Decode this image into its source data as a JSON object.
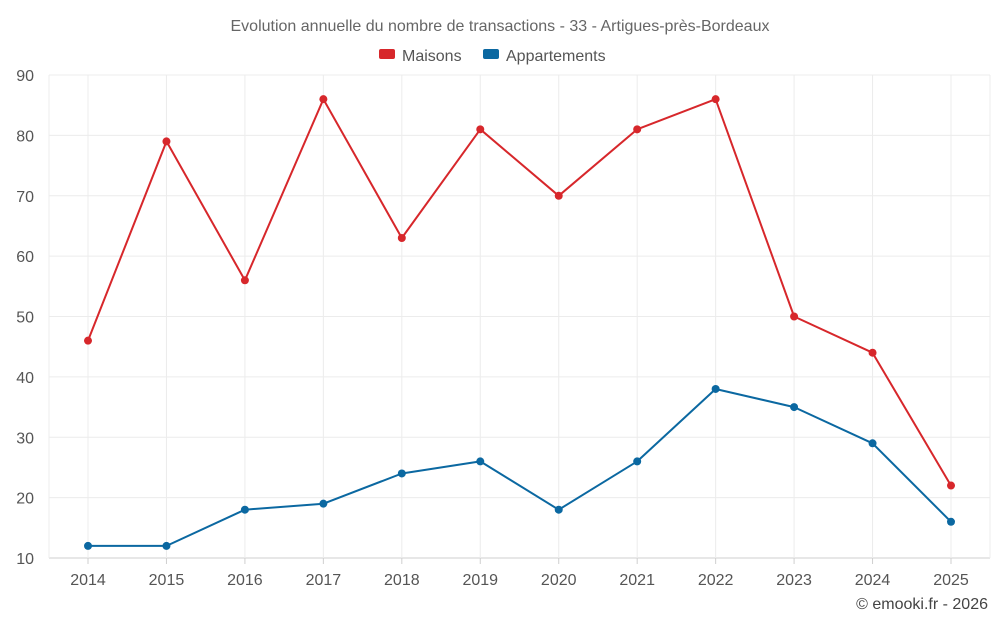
{
  "chart_data": {
    "type": "line",
    "title": "Evolution annuelle du nombre de transactions - 33 - Artigues-près-Bordeaux",
    "categories": [
      "2014",
      "2015",
      "2016",
      "2017",
      "2018",
      "2019",
      "2020",
      "2021",
      "2022",
      "2023",
      "2024",
      "2025"
    ],
    "series": [
      {
        "name": "Maisons",
        "color": "#d7272b",
        "values": [
          46,
          79,
          56,
          86,
          63,
          81,
          70,
          81,
          86,
          50,
          44,
          22
        ]
      },
      {
        "name": "Appartements",
        "color": "#0b68a1",
        "values": [
          12,
          12,
          18,
          19,
          24,
          26,
          18,
          26,
          38,
          35,
          29,
          16
        ]
      }
    ],
    "ylim": [
      10,
      90
    ],
    "yticks": [
      10,
      20,
      30,
      40,
      50,
      60,
      70,
      80,
      90
    ],
    "grid": true,
    "legend_position": "top-center",
    "xlabel": "",
    "ylabel": ""
  },
  "credit": "© emooki.fr - 2026"
}
